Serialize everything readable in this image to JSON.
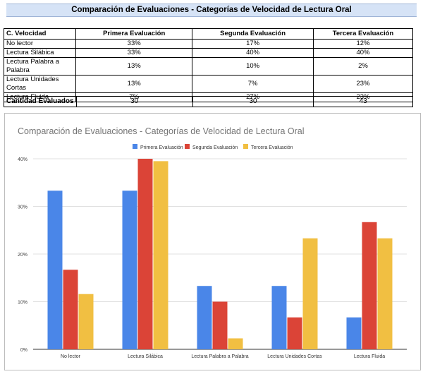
{
  "banner_title": "Comparación de Evaluaciones - Categorías de Velocidad de Lectura Oral",
  "table": {
    "headers": [
      "C. Velocidad",
      "Primera Evaluación",
      "Segunda Evaluación",
      "Tercera Evaluación"
    ],
    "rows": [
      [
        "No lector",
        "33%",
        "17%",
        "12%"
      ],
      [
        "Lectura Silábica",
        "33%",
        "40%",
        "40%"
      ],
      [
        "Lectura Palabra a Palabra",
        "13%",
        "10%",
        "2%"
      ],
      [
        "Lectura Unidades Cortas",
        "13%",
        "7%",
        "23%"
      ],
      [
        "Lectura Fluida",
        "7%",
        "27%",
        "23%"
      ]
    ]
  },
  "count_row": {
    "label": "Cantidad Evaluados",
    "values": [
      "30",
      "30",
      "43"
    ]
  },
  "colors": {
    "series": [
      "#4a86e8",
      "#db4437",
      "#f1bf42"
    ],
    "banner": "#d6e3f6"
  },
  "chart_data": {
    "type": "bar",
    "title": "Comparación de Evaluaciones - Categorías de Velocidad de Lectura Oral",
    "categories": [
      "No lector",
      "Lectura Silábica",
      "Lectura Palabra a Palabra",
      "Lectura Unidades Cortas",
      "Lectura Fluida"
    ],
    "series": [
      {
        "name": "Primera Evaluación",
        "values": [
          33.3,
          33.3,
          13.3,
          13.3,
          6.7
        ]
      },
      {
        "name": "Segunda Evaluación",
        "values": [
          16.7,
          40.0,
          10.0,
          6.7,
          26.7
        ]
      },
      {
        "name": "Tercera Evaluación",
        "values": [
          11.6,
          39.5,
          2.3,
          23.3,
          23.3
        ]
      }
    ],
    "ylim": [
      0,
      40
    ],
    "yticks": [
      0,
      10,
      20,
      30,
      40
    ],
    "ytick_labels": [
      "0%",
      "10%",
      "20%",
      "30%",
      "40%"
    ],
    "legend": "top-center",
    "xlabel": "",
    "ylabel": ""
  }
}
